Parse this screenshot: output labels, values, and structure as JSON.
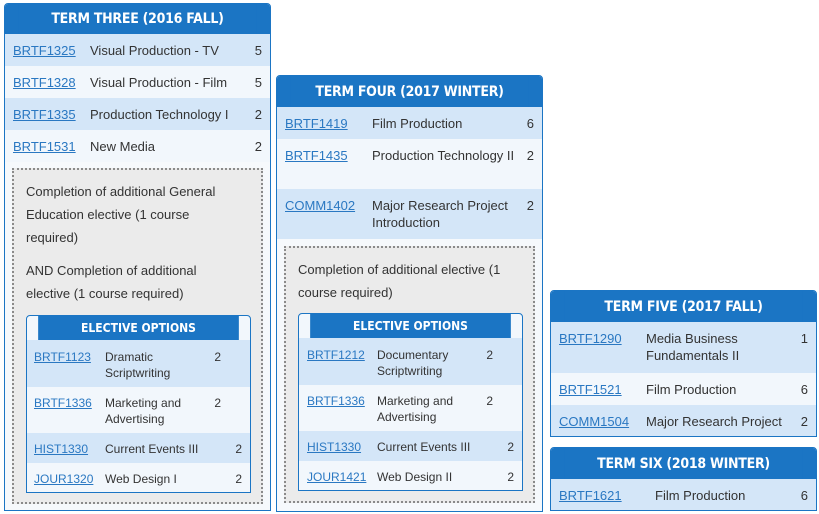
{
  "terms": [
    {
      "title": "TERM THREE (2016 FALL)",
      "courses": [
        {
          "code": "BRTF1325",
          "name": "Visual Production - TV",
          "credits": "5"
        },
        {
          "code": "BRTF1328",
          "name": "Visual Production - Film",
          "credits": "5"
        },
        {
          "code": "BRTF1335",
          "name": "Production Technology I",
          "credits": "2"
        },
        {
          "code": "BRTF1531",
          "name": "New Media",
          "credits": "2"
        }
      ],
      "notes": [
        "Completion of additional General Education elective (1 course required)",
        "AND Completion of additional elective (1 course required)"
      ],
      "electives": {
        "title": "ELECTIVE OPTIONS",
        "courses": [
          {
            "code": "BRTF1123",
            "name": "Dramatic Scriptwriting",
            "credits": "2"
          },
          {
            "code": "BRTF1336",
            "name": "Marketing and Advertising",
            "credits": "2"
          },
          {
            "code": "HIST1330",
            "name": "Current Events III",
            "credits": "2"
          },
          {
            "code": "JOUR1320",
            "name": "Web Design I",
            "credits": "2"
          }
        ]
      }
    },
    {
      "title": "TERM FOUR (2017 WINTER)",
      "courses": [
        {
          "code": "BRTF1419",
          "name": "Film Production",
          "credits": "6"
        },
        {
          "code": "BRTF1435",
          "name": "Production Technology II",
          "credits": "2"
        },
        {
          "code": "COMM1402",
          "name": "Major Research Project Introduction",
          "credits": "2"
        }
      ],
      "notes": [
        "Completion of additional elective (1 course required)"
      ],
      "electives": {
        "title": "ELECTIVE OPTIONS",
        "courses": [
          {
            "code": "BRTF1212",
            "name": "Documentary Scriptwriting",
            "credits": "2"
          },
          {
            "code": "BRTF1336",
            "name": "Marketing and Advertising",
            "credits": "2"
          },
          {
            "code": "HIST1330",
            "name": "Current Events III",
            "credits": "2"
          },
          {
            "code": "JOUR1421",
            "name": "Web Design II",
            "credits": "2"
          }
        ]
      }
    },
    {
      "title": "TERM FIVE (2017 FALL)",
      "courses": [
        {
          "code": "BRTF1290",
          "name": "Media Business Fundamentals II",
          "credits": "1"
        },
        {
          "code": "BRTF1521",
          "name": "Film Production",
          "credits": "6"
        },
        {
          "code": "COMM1504",
          "name": "Major Research Project",
          "credits": "2"
        }
      ]
    },
    {
      "title": "TERM SIX (2018 WINTER)",
      "courses": [
        {
          "code": "BRTF1621",
          "name": "Film Production",
          "credits": "6"
        }
      ]
    }
  ]
}
